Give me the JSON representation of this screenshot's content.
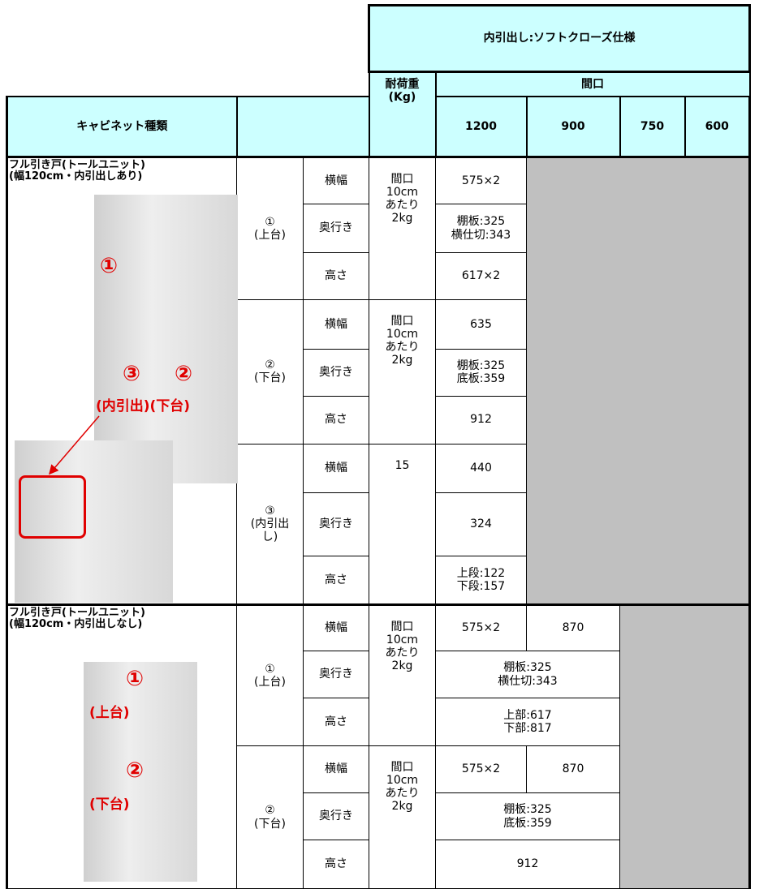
{
  "header": {
    "title": "内引出し:ソフトクローズ仕様",
    "load_label": "耐荷重\n(Kg)",
    "frontage_label": "間口",
    "cabinet_type_label": "キャビネット種類",
    "widths": [
      "1200",
      "900",
      "750",
      "600"
    ]
  },
  "sections": [
    {
      "name": "フル引き戸(トールユニット)\n(幅120cm・内引出しあり)",
      "image_labels": [
        "①",
        "③",
        "②",
        "(内引出)(下台)"
      ],
      "parts": [
        {
          "label": "①\n(上台)",
          "load": "間口\n10cm\nあたり\n2kg",
          "rows": [
            [
              "横幅",
              "575×2"
            ],
            [
              "奥行き",
              "棚板:325\n横仕切:343"
            ],
            [
              "高さ",
              "617×2"
            ]
          ]
        },
        {
          "label": "②\n(下台)",
          "load": "間口\n10cm\nあたり\n2kg",
          "rows": [
            [
              "横幅",
              "635"
            ],
            [
              "奥行き",
              "棚板:325\n底板:359"
            ],
            [
              "高さ",
              "912"
            ]
          ]
        },
        {
          "label": "③\n(内引出\nし)",
          "load": "15",
          "rows": [
            [
              "横幅",
              "440"
            ],
            [
              "奥行き",
              "324"
            ],
            [
              "高さ",
              "上段:122\n下段:157"
            ]
          ]
        }
      ]
    },
    {
      "name": "フル引き戸(トールユニット)\n(幅120cm・内引出しなし)",
      "image_labels": [
        "①",
        "(上台)",
        "②",
        "(下台)"
      ],
      "parts": [
        {
          "label": "①\n(上台)",
          "load": "間口\n10cm\nあたり\n2kg",
          "rows": [
            [
              "横幅",
              "575×2",
              "870"
            ],
            [
              "奥行き",
              "棚板:325\n横仕切:343"
            ],
            [
              "高さ",
              "上部:617\n下部:817"
            ]
          ]
        },
        {
          "label": "②\n(下台)",
          "load": "間口\n10cm\nあたり\n2kg",
          "rows": [
            [
              "横幅",
              "575×2",
              "870"
            ],
            [
              "奥行き",
              "棚板:325\n底板:359"
            ],
            [
              "高さ",
              "912"
            ]
          ]
        }
      ]
    }
  ]
}
